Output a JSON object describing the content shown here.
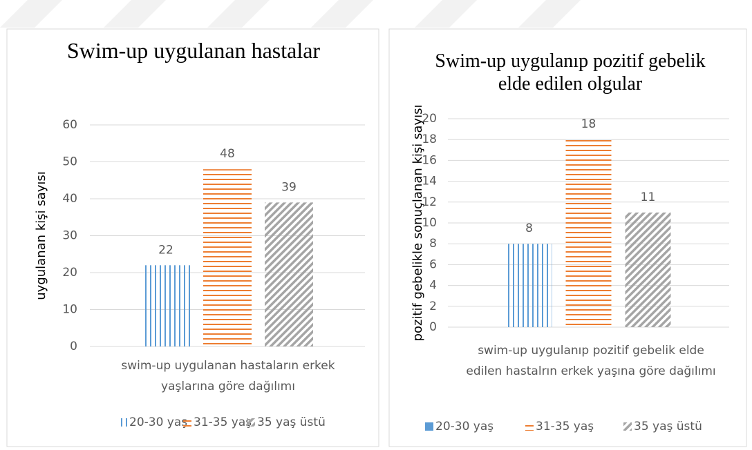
{
  "chart_data": [
    {
      "type": "bar",
      "title": "Swim-up uygulanan hastalar",
      "y_label": "uygulanan kişi sayısı",
      "categories": [
        "swim-up uygulanan hastaların erkek yaşlarına göre dağılımı"
      ],
      "series": [
        {
          "name": "20-30 yaş",
          "color": "#5b9bd5",
          "pattern": "vertical",
          "values": [
            22
          ]
        },
        {
          "name": "31-35 yaş",
          "color": "#ed7d31",
          "pattern": "horizontal",
          "values": [
            48
          ]
        },
        {
          "name": "35 yaş üstü",
          "color": "#a5a5a5",
          "pattern": "diagonal",
          "values": [
            39
          ]
        }
      ],
      "ylim": [
        0,
        60
      ],
      "yticks": [
        0,
        10,
        20,
        30,
        40,
        50,
        60
      ],
      "grid": true,
      "legend": "bottom"
    },
    {
      "type": "bar",
      "title": "Swim-up uygulanıp pozitif gebelik elde edilen olgular",
      "y_label": "pozitif gebelikle sonuçlanan kişi sayısı",
      "categories": [
        "swim-up uygulanıp pozitif gebelik elde edilen hastalrın erkek yaşına göre dağılımı"
      ],
      "series": [
        {
          "name": "20-30 yaş",
          "color": "#5b9bd5",
          "pattern": "vertical",
          "values": [
            8
          ]
        },
        {
          "name": "31-35 yaş",
          "color": "#ed7d31",
          "pattern": "horizontal",
          "values": [
            18
          ]
        },
        {
          "name": "35 yaş üstü",
          "color": "#a5a5a5",
          "pattern": "diagonal",
          "values": [
            11
          ]
        }
      ],
      "ylim": [
        0,
        20
      ],
      "yticks": [
        0,
        2,
        4,
        6,
        8,
        10,
        12,
        14,
        16,
        18,
        20
      ],
      "grid": true,
      "legend": "bottom"
    }
  ]
}
